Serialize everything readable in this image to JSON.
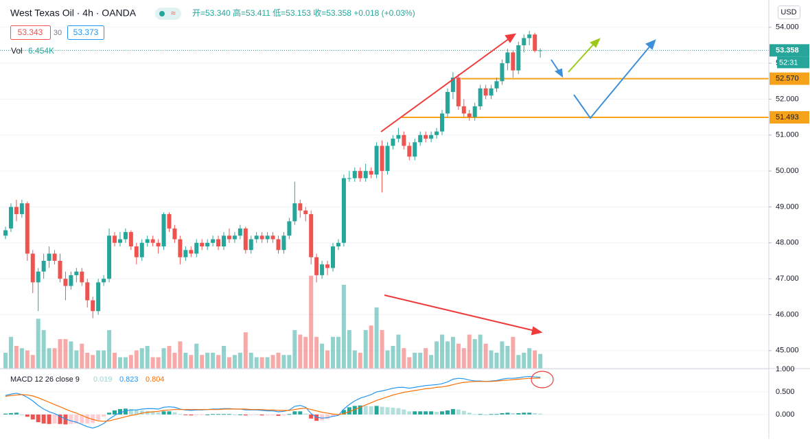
{
  "chart_data": {
    "type": "candlestick",
    "title": "West Texas Oil · 4h · OANDA",
    "badge_icon": "≈",
    "ohlc_legend": "开=53.340 高=53.411 低=53.153 收=53.358 +0.018 (+0.03%)",
    "badges": [
      "53.343",
      "30",
      "53.373"
    ],
    "currency": "USD",
    "volume_label": "Vol",
    "volume_value_label": "6.454K",
    "open": [
      48.2,
      48.4,
      49.0,
      48.8,
      49.1,
      47.7,
      46.9,
      47.2,
      47.5,
      47.7,
      47.5,
      47.0,
      46.8,
      47.1,
      47.2,
      46.9,
      46.4,
      46.1,
      46.9,
      47.0,
      48.2,
      48.0,
      48.1,
      48.3,
      47.9,
      47.6,
      48.0,
      48.1,
      48.0,
      47.9,
      48.8,
      48.4,
      48.1,
      47.6,
      47.8,
      47.7,
      48.0,
      47.9,
      48.0,
      48.1,
      47.9,
      48.2,
      48.1,
      48.2,
      48.4,
      47.8,
      48.1,
      48.2,
      48.1,
      48.2,
      48.1,
      47.8,
      48.2,
      48.6,
      49.1,
      48.9,
      48.8,
      47.6,
      47.1,
      47.4,
      47.3,
      47.9,
      48.0,
      49.8,
      49.8,
      50.0,
      49.8,
      50.0,
      49.9,
      50.7,
      50.0,
      50.7,
      50.9,
      51.0,
      50.7,
      50.4,
      50.8,
      51.0,
      50.9,
      51.0,
      51.1,
      51.6,
      52.2,
      52.6,
      51.8,
      51.6,
      51.5,
      51.8,
      52.3,
      52.1,
      52.3,
      52.5,
      53.0,
      53.3,
      52.8,
      53.5,
      53.7,
      53.8,
      53.34
    ],
    "high": [
      48.45,
      49.1,
      49.2,
      49.2,
      49.15,
      47.8,
      47.3,
      47.7,
      47.9,
      47.8,
      47.7,
      47.2,
      47.2,
      47.3,
      47.3,
      47.0,
      46.5,
      47.0,
      47.1,
      48.4,
      48.3,
      48.3,
      48.4,
      48.35,
      48.0,
      48.1,
      48.2,
      48.2,
      48.1,
      48.85,
      48.85,
      48.5,
      48.2,
      47.9,
      47.9,
      48.1,
      48.1,
      48.1,
      48.2,
      48.2,
      48.3,
      48.4,
      48.3,
      48.5,
      48.45,
      48.2,
      48.3,
      48.3,
      48.3,
      48.3,
      48.2,
      48.3,
      48.7,
      49.7,
      49.2,
      49.0,
      48.9,
      47.7,
      47.5,
      47.5,
      48.0,
      48.1,
      49.9,
      50.0,
      50.1,
      50.1,
      50.2,
      50.1,
      50.8,
      50.85,
      50.8,
      51.0,
      51.2,
      51.1,
      50.8,
      50.9,
      51.1,
      51.1,
      51.1,
      51.2,
      51.7,
      52.3,
      52.75,
      52.7,
      52.0,
      51.7,
      51.9,
      52.4,
      52.4,
      52.4,
      52.6,
      53.1,
      53.4,
      53.35,
      53.6,
      53.8,
      53.9,
      53.85,
      53.411
    ],
    "low": [
      48.1,
      48.3,
      48.6,
      48.7,
      47.5,
      46.6,
      46.1,
      47.0,
      47.3,
      47.4,
      46.9,
      46.4,
      46.7,
      46.9,
      46.8,
      46.2,
      45.9,
      46.0,
      46.8,
      46.9,
      47.9,
      47.9,
      48.0,
      47.8,
      47.4,
      47.5,
      47.9,
      47.9,
      47.7,
      47.8,
      48.3,
      48.0,
      47.4,
      47.5,
      47.6,
      47.6,
      47.8,
      47.8,
      47.9,
      47.8,
      47.8,
      48.0,
      48.0,
      48.1,
      47.7,
      47.7,
      48.0,
      48.0,
      48.0,
      48.0,
      47.7,
      47.7,
      48.1,
      48.5,
      48.7,
      48.6,
      47.4,
      46.9,
      47.0,
      47.1,
      47.2,
      47.8,
      47.9,
      49.7,
      49.7,
      49.7,
      49.7,
      49.8,
      49.8,
      49.4,
      49.9,
      50.6,
      50.8,
      50.6,
      50.3,
      50.3,
      50.7,
      50.8,
      50.8,
      50.9,
      51.0,
      51.5,
      52.0,
      51.7,
      51.5,
      51.4,
      51.4,
      51.7,
      52.0,
      52.0,
      52.2,
      52.4,
      52.8,
      52.6,
      52.7,
      53.3,
      53.5,
      53.3,
      53.153
    ],
    "close": [
      48.35,
      49.0,
      48.8,
      49.1,
      47.7,
      46.9,
      47.2,
      47.5,
      47.7,
      47.5,
      47.0,
      46.8,
      47.1,
      47.2,
      46.9,
      46.4,
      46.1,
      46.9,
      47.0,
      48.2,
      48.0,
      48.1,
      48.3,
      47.9,
      47.6,
      48.0,
      48.1,
      48.0,
      47.9,
      48.8,
      48.4,
      48.1,
      47.6,
      47.8,
      47.7,
      48.0,
      47.9,
      48.0,
      48.1,
      47.9,
      48.2,
      48.1,
      48.2,
      48.4,
      47.8,
      48.1,
      48.2,
      48.1,
      48.2,
      48.1,
      47.8,
      48.2,
      48.6,
      49.1,
      48.9,
      48.8,
      47.6,
      47.1,
      47.4,
      47.3,
      47.9,
      48.0,
      49.8,
      49.8,
      50.0,
      49.8,
      50.0,
      49.9,
      50.7,
      50.0,
      50.7,
      50.9,
      51.0,
      50.7,
      50.4,
      50.8,
      51.0,
      50.9,
      51.0,
      51.1,
      51.6,
      52.2,
      52.6,
      51.8,
      51.6,
      51.5,
      51.8,
      52.3,
      52.1,
      52.3,
      52.5,
      53.0,
      53.3,
      52.8,
      53.5,
      53.7,
      53.8,
      53.343,
      53.358
    ],
    "volume": [
      7,
      14,
      10,
      9,
      8,
      6,
      22,
      17,
      9,
      9,
      13,
      13,
      12,
      8,
      11,
      7,
      6,
      8,
      8,
      17,
      7,
      5,
      5,
      6,
      8,
      9,
      10,
      5,
      5,
      9,
      10,
      7,
      12,
      7,
      6,
      11,
      6,
      7,
      7,
      6,
      10,
      5,
      6,
      7,
      16,
      7,
      5,
      5,
      5,
      6,
      7,
      6,
      6,
      17,
      15,
      14,
      41,
      14,
      11,
      8,
      14,
      14,
      37,
      17,
      8,
      7,
      17,
      19,
      27,
      17,
      8,
      10,
      15,
      9,
      5,
      7,
      7,
      9,
      6,
      12,
      15,
      12,
      14,
      11,
      9,
      15,
      13,
      15,
      11,
      8,
      7,
      12,
      10,
      14,
      6,
      7,
      9,
      8,
      6.454
    ],
    "ylim": [
      44.5,
      54.76
    ],
    "yticks": [
      {
        "value": 45,
        "label": "45.000"
      },
      {
        "value": 46,
        "label": "46.000"
      },
      {
        "value": 47,
        "label": "47.000"
      },
      {
        "value": 48,
        "label": "48.000"
      },
      {
        "value": 49,
        "label": "49.000"
      },
      {
        "value": 50,
        "label": "50.000"
      },
      {
        "value": 51,
        "label": "51.000"
      },
      {
        "value": 52,
        "label": "52.000"
      },
      {
        "value": 53,
        "label": "53.000"
      },
      {
        "value": 54,
        "label": "54.000"
      }
    ],
    "current": {
      "value": 53.358,
      "label": "53.358"
    },
    "countdown": "52:31",
    "levels": [
      {
        "value": 52.57,
        "label": "52.570"
      },
      {
        "value": 51.493,
        "label": "51.493"
      }
    ],
    "colors": {
      "up": "#26a69a",
      "down": "#ef5350",
      "up_light": "#b2dfdb",
      "down_light": "#ffcdd2",
      "level": "#f7a21b",
      "macd": "#2196f3",
      "signal": "#ff6d00"
    },
    "grid": true,
    "macd": {
      "label": "MACD 12 26 close 9",
      "macd": [
        0.42,
        0.45,
        0.47,
        0.44,
        0.38,
        0.3,
        0.2,
        0.12,
        0.06,
        0.02,
        -0.04,
        -0.1,
        -0.14,
        -0.17,
        -0.22,
        -0.27,
        -0.3,
        -0.26,
        -0.2,
        -0.1,
        -0.02,
        0.04,
        0.08,
        0.1,
        0.1,
        0.12,
        0.13,
        0.13,
        0.12,
        0.16,
        0.17,
        0.16,
        0.12,
        0.1,
        0.09,
        0.1,
        0.1,
        0.11,
        0.12,
        0.12,
        0.13,
        0.13,
        0.12,
        0.12,
        0.1,
        0.1,
        0.1,
        0.09,
        0.08,
        0.08,
        0.06,
        0.07,
        0.1,
        0.18,
        0.2,
        0.16,
        0.02,
        -0.06,
        -0.08,
        -0.07,
        -0.04,
        -0.02,
        0.12,
        0.22,
        0.3,
        0.36,
        0.4,
        0.44,
        0.5,
        0.52,
        0.55,
        0.58,
        0.6,
        0.6,
        0.58,
        0.6,
        0.62,
        0.64,
        0.65,
        0.66,
        0.68,
        0.72,
        0.78,
        0.8,
        0.79,
        0.76,
        0.74,
        0.74,
        0.73,
        0.74,
        0.75,
        0.78,
        0.8,
        0.8,
        0.81,
        0.83,
        0.84,
        0.83,
        0.823
      ],
      "signal": [
        0.4,
        0.42,
        0.43,
        0.44,
        0.43,
        0.41,
        0.37,
        0.32,
        0.27,
        0.22,
        0.17,
        0.12,
        0.07,
        0.03,
        -0.02,
        -0.07,
        -0.11,
        -0.14,
        -0.15,
        -0.14,
        -0.11,
        -0.08,
        -0.05,
        -0.02,
        0,
        0.03,
        0.05,
        0.06,
        0.07,
        0.09,
        0.1,
        0.11,
        0.11,
        0.11,
        0.11,
        0.11,
        0.11,
        0.11,
        0.11,
        0.11,
        0.12,
        0.12,
        0.12,
        0.12,
        0.12,
        0.11,
        0.11,
        0.11,
        0.1,
        0.1,
        0.09,
        0.09,
        0.09,
        0.11,
        0.13,
        0.14,
        0.11,
        0.08,
        0.05,
        0.03,
        0.01,
        0,
        0.02,
        0.06,
        0.11,
        0.16,
        0.21,
        0.26,
        0.31,
        0.35,
        0.39,
        0.43,
        0.46,
        0.49,
        0.51,
        0.53,
        0.55,
        0.57,
        0.58,
        0.6,
        0.61,
        0.63,
        0.66,
        0.69,
        0.71,
        0.72,
        0.73,
        0.73,
        0.73,
        0.73,
        0.74,
        0.75,
        0.76,
        0.77,
        0.78,
        0.79,
        0.8,
        0.8,
        0.804
      ],
      "hist": [
        0.02,
        0.03,
        0.04,
        0,
        -0.05,
        -0.11,
        -0.17,
        -0.2,
        -0.21,
        -0.2,
        -0.21,
        -0.22,
        -0.21,
        -0.2,
        -0.2,
        -0.2,
        -0.19,
        -0.12,
        -0.05,
        0.04,
        0.09,
        0.12,
        0.13,
        0.12,
        0.1,
        0.09,
        0.08,
        0.07,
        0.05,
        0.07,
        0.07,
        0.05,
        0.01,
        -0.01,
        -0.02,
        -0.01,
        -0.01,
        0,
        0.01,
        0.01,
        0.01,
        0.01,
        0,
        0,
        -0.02,
        -0.01,
        -0.01,
        -0.02,
        -0.02,
        -0.02,
        -0.03,
        -0.02,
        0.01,
        0.07,
        0.07,
        0.02,
        -0.09,
        -0.14,
        -0.13,
        -0.1,
        -0.05,
        -0.02,
        0.1,
        0.16,
        0.19,
        0.2,
        0.19,
        0.18,
        0.19,
        0.17,
        0.16,
        0.15,
        0.14,
        0.11,
        0.07,
        0.07,
        0.07,
        0.07,
        0.07,
        0.06,
        0.07,
        0.09,
        0.12,
        0.11,
        0.08,
        0.04,
        0.01,
        0.01,
        0,
        0.01,
        0.01,
        0.03,
        0.04,
        0.03,
        0.03,
        0.04,
        0.04,
        0.03,
        0.019
      ],
      "ylim": [
        -0.35,
        1.015
      ],
      "yticks": [
        {
          "value": 0,
          "label": "0.000"
        },
        {
          "value": 0.5,
          "label": "0.500"
        },
        {
          "value": 1,
          "label": "1.000"
        }
      ]
    }
  }
}
